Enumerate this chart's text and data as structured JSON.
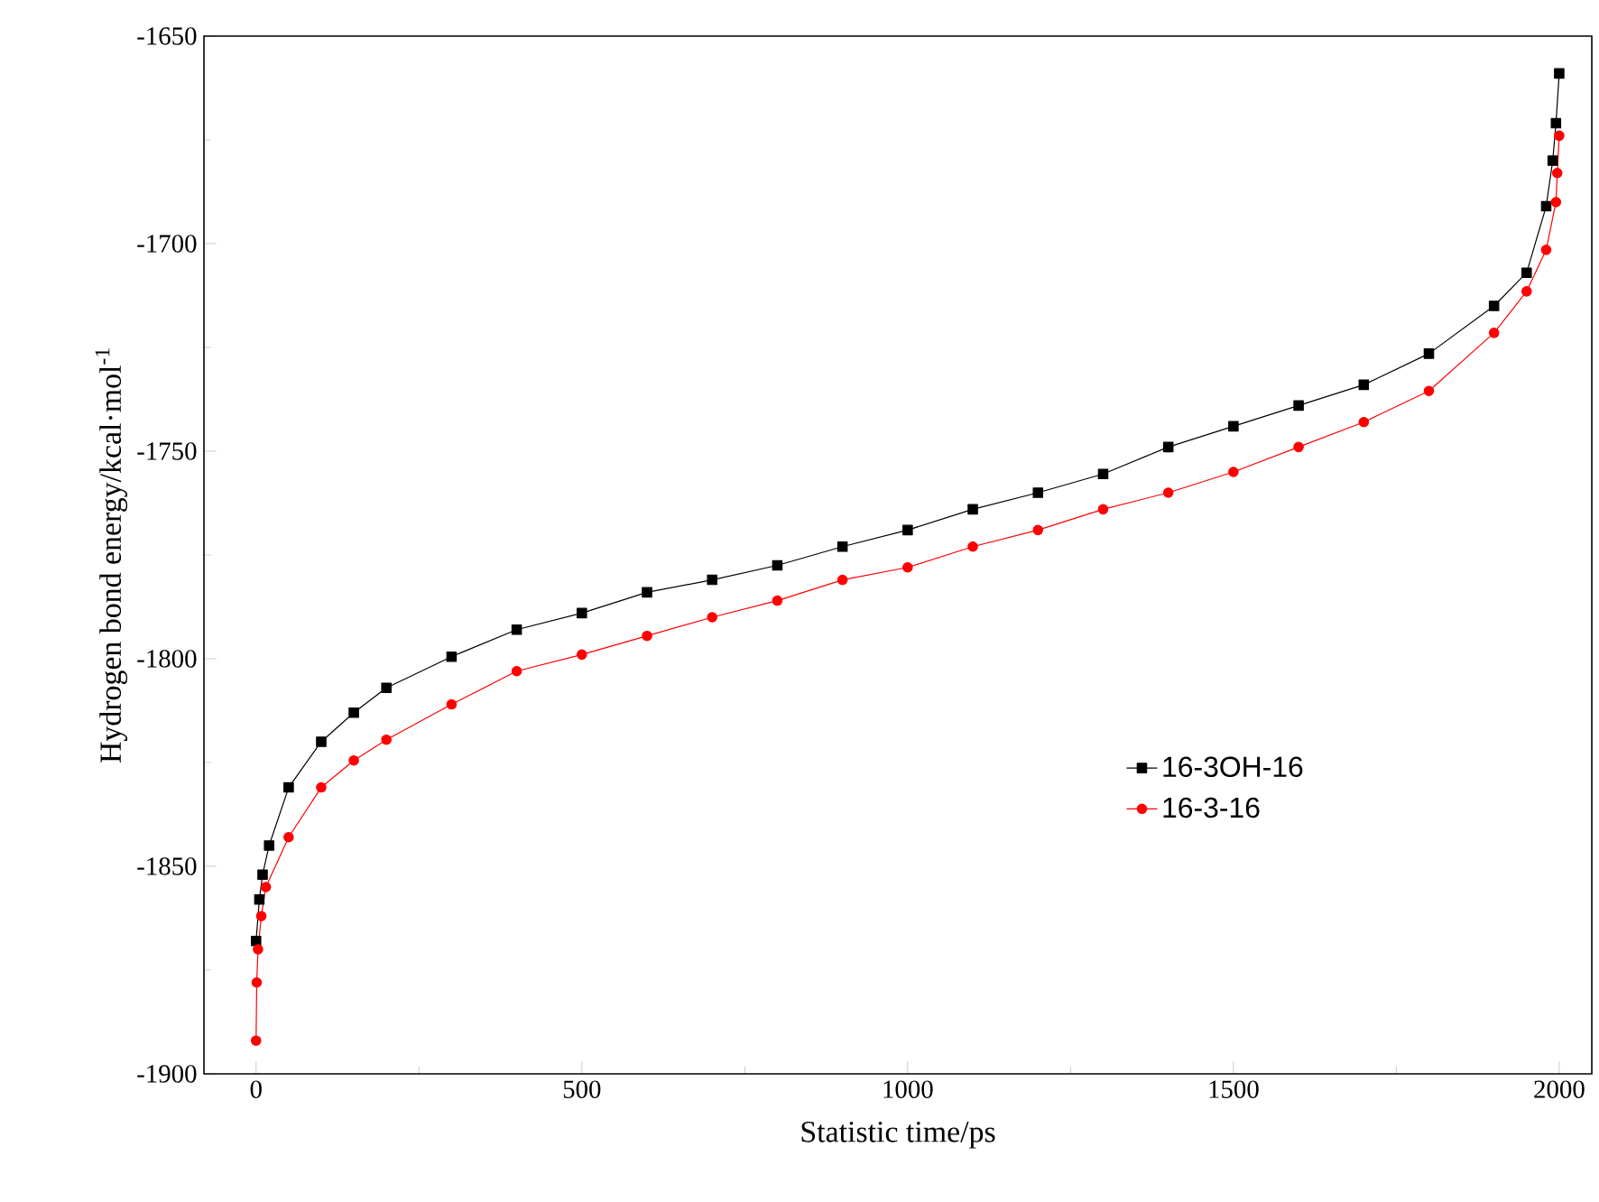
{
  "chart_data": {
    "type": "line",
    "xlabel": "Statistic time/ps",
    "ylabel": "Hydrogen bond energy/kcal·mol$^{-1}$",
    "xlim": [
      -80,
      2050
    ],
    "ylim": [
      -1900,
      -1650
    ],
    "xticks": [
      0,
      500,
      1000,
      1500,
      2000
    ],
    "yticks": [
      -1900,
      -1850,
      -1800,
      -1750,
      -1700,
      -1650
    ],
    "legend": "right",
    "grid": false,
    "series": [
      {
        "name": "16-3OH-16",
        "color": "#000000",
        "marker": "square",
        "x": [
          0,
          5,
          10,
          20,
          50,
          100,
          150,
          200,
          300,
          400,
          500,
          600,
          700,
          800,
          900,
          1000,
          1100,
          1200,
          1300,
          1400,
          1500,
          1600,
          1700,
          1800,
          1900,
          1950,
          1980,
          1990,
          1995,
          2000
        ],
        "values": [
          -1868,
          -1858,
          -1852,
          -1845,
          -1831,
          -1820,
          -1813,
          -1807,
          -1799.5,
          -1793,
          -1789,
          -1784,
          -1781,
          -1777.5,
          -1773,
          -1769,
          -1764,
          -1760,
          -1755.5,
          -1749,
          -1744,
          -1739,
          -1734,
          -1726.5,
          -1715,
          -1707,
          -1691,
          -1680,
          -1671,
          -1659
        ]
      },
      {
        "name": "16-3-16",
        "color": "#ff0000",
        "marker": "circle",
        "x": [
          0,
          1,
          3,
          8,
          15,
          50,
          100,
          150,
          200,
          300,
          400,
          500,
          600,
          700,
          800,
          900,
          1000,
          1100,
          1200,
          1300,
          1400,
          1500,
          1600,
          1700,
          1800,
          1900,
          1950,
          1980,
          1995,
          1997,
          2000
        ],
        "values": [
          -1892,
          -1878,
          -1870,
          -1862,
          -1855,
          -1843,
          -1831,
          -1824.5,
          -1819.5,
          -1811,
          -1803,
          -1799,
          -1794.5,
          -1790,
          -1786,
          -1781,
          -1778,
          -1773,
          -1769,
          -1764,
          -1760,
          -1755,
          -1749,
          -1743,
          -1735.5,
          -1721.5,
          -1711.5,
          -1701.5,
          -1690,
          -1683,
          -1674
        ]
      }
    ]
  }
}
